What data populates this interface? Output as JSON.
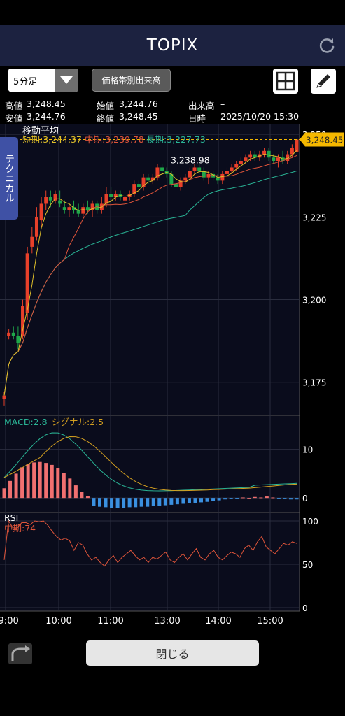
{
  "header": {
    "title": "TOPIX"
  },
  "toolbar": {
    "period": "5分足",
    "price_volume_button": "価格帯別出来高"
  },
  "info": {
    "high_label": "高値",
    "high": "3,248.45",
    "open_label": "始値",
    "open": "3,244.76",
    "volume_label": "出来高",
    "volume": "–",
    "low_label": "安値",
    "low": "3,244.76",
    "close_label": "終値",
    "close": "3,248.45",
    "datetime_label": "日時",
    "datetime": "2025/10/20 15:30"
  },
  "side_tab": "テクニカル",
  "close_button": "閉じる",
  "colors": {
    "bull": "#e8402a",
    "bear": "#1fa84a",
    "short_ma": "#e0c02a",
    "mid_ma": "#e0553a",
    "long_ma": "#2ab596",
    "signal": "#d4a020",
    "macd": "#2ab596",
    "rsi": "#e0553a",
    "hist_pos": "#f07070",
    "hist_neg": "#3a90e0",
    "badge": "#f5b800"
  },
  "chart_data": [
    {
      "type": "candlestick",
      "title": "移動平均",
      "legend": [
        {
          "name": "短期",
          "value": "3,244.37"
        },
        {
          "name": "中期",
          "value": "3,239.78"
        },
        {
          "name": "長期",
          "value": "3,227.73"
        }
      ],
      "ylim": [
        3165,
        3253
      ],
      "y_ticks": [
        "3,250",
        "3,225",
        "3,200",
        "3,175"
      ],
      "last_price_label": "3,248.45",
      "annotation": "3,238.98",
      "x_ticks": [
        "09:00",
        "10:00",
        "11:00",
        "13:00",
        "14:00",
        "15:00"
      ],
      "ohlc": [
        [
          3170,
          3172,
          3168,
          3171
        ],
        [
          3189,
          3191,
          3188,
          3190
        ],
        [
          3190,
          3192,
          3188,
          3189
        ],
        [
          3189,
          3192,
          3185,
          3187
        ],
        [
          3189,
          3200,
          3188,
          3198
        ],
        [
          3196,
          3216,
          3194,
          3214
        ],
        [
          3216,
          3222,
          3214,
          3219
        ],
        [
          3219,
          3228,
          3218,
          3225
        ],
        [
          3224,
          3231,
          3222,
          3229
        ],
        [
          3229,
          3233,
          3227,
          3231
        ],
        [
          3231,
          3233,
          3228,
          3230
        ],
        [
          3230,
          3233,
          3229,
          3232
        ],
        [
          3230,
          3233,
          3228,
          3229
        ],
        [
          3228,
          3230,
          3226,
          3227
        ],
        [
          3227,
          3229,
          3225,
          3228
        ],
        [
          3228,
          3230,
          3226,
          3227
        ],
        [
          3227,
          3229,
          3225,
          3226
        ],
        [
          3226,
          3229,
          3225,
          3228
        ],
        [
          3228,
          3230,
          3226,
          3227
        ],
        [
          3227,
          3230,
          3225,
          3229
        ],
        [
          3229,
          3230,
          3226,
          3227
        ],
        [
          3227,
          3231,
          3226,
          3229
        ],
        [
          3229,
          3234,
          3228,
          3232
        ],
        [
          3232,
          3234,
          3230,
          3231
        ],
        [
          3231,
          3233,
          3230,
          3232
        ],
        [
          3232,
          3233,
          3230,
          3231
        ],
        [
          3230,
          3232,
          3229,
          3231
        ],
        [
          3231,
          3233,
          3230,
          3232
        ],
        [
          3232,
          3236,
          3231,
          3235
        ],
        [
          3235,
          3236,
          3233,
          3234
        ],
        [
          3234,
          3238,
          3233,
          3237
        ],
        [
          3237,
          3238,
          3235,
          3236
        ],
        [
          3236,
          3238,
          3235,
          3237
        ],
        [
          3237,
          3241,
          3236,
          3240
        ],
        [
          3240,
          3241,
          3238,
          3239
        ],
        [
          3239,
          3240,
          3237,
          3238
        ],
        [
          3238,
          3239,
          3234,
          3235
        ],
        [
          3235,
          3237,
          3233,
          3234
        ],
        [
          3234,
          3237,
          3233,
          3236
        ],
        [
          3236,
          3238,
          3235,
          3237
        ],
        [
          3237,
          3240,
          3236,
          3239
        ],
        [
          3239,
          3241,
          3238,
          3240
        ],
        [
          3240,
          3241,
          3238,
          3239
        ],
        [
          3239,
          3240,
          3236,
          3237
        ],
        [
          3237,
          3239,
          3235,
          3238
        ],
        [
          3238,
          3239,
          3236,
          3237
        ],
        [
          3237,
          3238,
          3235,
          3236
        ],
        [
          3236,
          3239,
          3235,
          3238
        ],
        [
          3238,
          3240,
          3237,
          3239
        ],
        [
          3239,
          3241,
          3238,
          3240
        ],
        [
          3240,
          3242,
          3239,
          3241
        ],
        [
          3241,
          3243,
          3240,
          3242
        ],
        [
          3242,
          3244,
          3241,
          3243
        ],
        [
          3243,
          3245,
          3242,
          3244
        ],
        [
          3244,
          3245,
          3242,
          3243
        ],
        [
          3243,
          3245,
          3242,
          3244
        ],
        [
          3244,
          3246,
          3243,
          3245
        ],
        [
          3245,
          3246,
          3242,
          3243
        ],
        [
          3243,
          3244,
          3241,
          3242
        ],
        [
          3242,
          3244,
          3240,
          3243
        ],
        [
          3243,
          3245,
          3241,
          3242
        ],
        [
          3242,
          3245,
          3241,
          3244
        ],
        [
          3244,
          3247,
          3243,
          3246
        ],
        [
          3244.76,
          3248.45,
          3244.76,
          3248.45
        ]
      ]
    },
    {
      "type": "line",
      "title": "MACD",
      "legend": [
        {
          "name": "MACD",
          "value": "2.8"
        },
        {
          "name": "シグナル",
          "value": "2.5"
        }
      ],
      "y_ticks": [
        "10",
        "0"
      ],
      "ylim": [
        -3,
        17
      ],
      "histogram": [
        2,
        3.5,
        5,
        6.3,
        7,
        7.3,
        7.4,
        7.2,
        6.8,
        6.2,
        5.2,
        4,
        2.6,
        1.2,
        0.4,
        -1.6,
        -1.8,
        -1.9,
        -2,
        -2,
        -2,
        -1.9,
        -1.9,
        -1.8,
        -1.8,
        -1.7,
        -1.6,
        -1.5,
        -1.4,
        -1.3,
        -1.2,
        -1.1,
        -1,
        -0.9,
        -0.8,
        -0.6,
        -0.5,
        -0.3,
        -0.2,
        -0.1,
        0.1,
        0,
        0.2,
        0.1,
        0.3,
        0.1,
        -0.1,
        -0.2,
        -0.3,
        -0.3
      ]
    },
    {
      "type": "line",
      "title": "RSI",
      "legend": [
        {
          "name": "中期",
          "value": "74"
        }
      ],
      "y_ticks": [
        "100",
        "50",
        "0"
      ],
      "ylim": [
        0,
        100
      ],
      "values": [
        55,
        100,
        92,
        92,
        98,
        98,
        96,
        100,
        99,
        100,
        95,
        88,
        82,
        78,
        80,
        77,
        66,
        75,
        72,
        62,
        55,
        58,
        52,
        48,
        55,
        60,
        52,
        58,
        62,
        66,
        60,
        55,
        58,
        52,
        58,
        56,
        60,
        64,
        55,
        52,
        58,
        62,
        55,
        62,
        68,
        58,
        55,
        62,
        66,
        58,
        55,
        60,
        64,
        62,
        58,
        68,
        72,
        66,
        76,
        82,
        70,
        66,
        62,
        68,
        74,
        72,
        76,
        74
      ]
    }
  ]
}
